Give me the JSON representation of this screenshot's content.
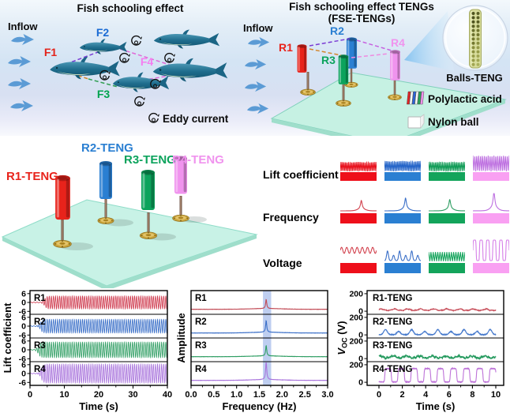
{
  "top_left": {
    "title": "Fish schooling effect",
    "inflow_label": "Inflow",
    "fish": [
      {
        "label": "F1",
        "color": "#e3231a"
      },
      {
        "label": "F2",
        "color": "#1a6bd4"
      },
      {
        "label": "F3",
        "color": "#00a34e"
      },
      {
        "label": "F4",
        "color": "#f57ef0"
      }
    ],
    "eddy_legend": "Eddy current"
  },
  "top_right": {
    "title_line1": "Fish schooling effect TENGs",
    "title_line2": "(FSE-TENGs)",
    "inflow_label": "Inflow",
    "rotors": [
      {
        "label": "R1",
        "color": "#e8231b"
      },
      {
        "label": "R2",
        "color": "#2a7fd2"
      },
      {
        "label": "R3",
        "color": "#0ca35c"
      },
      {
        "label": "R4",
        "color": "#f093ee"
      }
    ],
    "inset_label": "Balls-TENG",
    "legend": [
      {
        "label": "Polylactic acid"
      },
      {
        "label": "Nylon ball"
      }
    ]
  },
  "middle_left": {
    "tengs": [
      {
        "label": "R1-TENG",
        "color": "#e8231b"
      },
      {
        "label": "R2-TENG",
        "color": "#2a7fd2"
      },
      {
        "label": "R3-TENG",
        "color": "#0ca35c"
      },
      {
        "label": "R4-TENG",
        "color": "#f093ee"
      }
    ]
  },
  "middle_right": {
    "rows": [
      {
        "label": "Lift coefficient",
        "bar_colors": [
          "#ee0f1a",
          "#2a7fd2",
          "#13a45b",
          "#f9a0f2"
        ],
        "cells": [
          {
            "type": "zigzag",
            "color": "#e8101c",
            "amp": 0.6,
            "cycles": 22
          },
          {
            "type": "zigzag",
            "color": "#2464c8",
            "amp": 0.66,
            "cycles": 22
          },
          {
            "type": "zigzag",
            "color": "#0d9a54",
            "amp": 0.6,
            "cycles": 21
          },
          {
            "type": "zigzag",
            "color": "#bd6fe0",
            "amp": 1.0,
            "cycles": 19
          }
        ]
      },
      {
        "label": "Frequency",
        "bar_colors": [
          "#ee0f1a",
          "#2a7fd2",
          "#13a45b",
          "#f9a0f2"
        ],
        "cells": [
          {
            "type": "peak",
            "color": "#d2424e",
            "amp": 0.55,
            "cycles": 1
          },
          {
            "type": "peak",
            "color": "#3a6fc8",
            "amp": 0.68,
            "cycles": 1
          },
          {
            "type": "peak",
            "color": "#2f9e63",
            "amp": 0.6,
            "cycles": 1
          },
          {
            "type": "peak",
            "color": "#bd6fe0",
            "amp": 1.0,
            "cycles": 1
          }
        ]
      },
      {
        "label": "Voltage",
        "bar_colors": [
          "#ee0f1a",
          "#2a7fd2",
          "#13a45b",
          "#f9a0f2"
        ],
        "cells": [
          {
            "type": "sine",
            "color": "#d2424e",
            "amp": 0.28,
            "cycles": 7
          },
          {
            "type": "bumps",
            "color": "#3a6fc8",
            "amp": 0.45,
            "cycles": 6
          },
          {
            "type": "zigzag",
            "color": "#13a45b",
            "amp": 0.42,
            "cycles": 16
          },
          {
            "type": "pulses",
            "color": "#d67fe8",
            "amp": 1.0,
            "cycles": 5.5
          }
        ]
      }
    ]
  },
  "chart_data": [
    {
      "type": "line",
      "id": "lift-coefficient-vs-time",
      "xlabel": "Time (s)",
      "ylabel": "Lift coefficient",
      "x_range": [
        0,
        40
      ],
      "x_ticks": [
        0,
        10,
        20,
        30,
        40
      ],
      "x_tick_labels": [
        "0",
        "10",
        "20",
        "30",
        "40"
      ],
      "x_minor_step": 5,
      "panel_ylim": [
        -8,
        8
      ],
      "panel_yticks": [
        6,
        0,
        -6
      ],
      "panel_ytick_labels": [
        "6",
        "0",
        "-6"
      ],
      "oscillation_freq_hz": 1.65,
      "panels": [
        {
          "label": "R1",
          "color": "#cf3a4e",
          "signal": {
            "kind": "lift_osc",
            "amp": 4.3,
            "onset_s": 4.2,
            "freq": 1.65
          }
        },
        {
          "label": "R2",
          "color": "#3a6fc8",
          "signal": {
            "kind": "lift_osc",
            "amp": 4.6,
            "onset_s": 3.0,
            "freq": 1.65
          }
        },
        {
          "label": "R3",
          "color": "#2f9e63",
          "signal": {
            "kind": "lift_osc",
            "amp": 5.2,
            "onset_s": 2.4,
            "freq": 1.65
          }
        },
        {
          "label": "R4",
          "color": "#a873dc",
          "signal": {
            "kind": "lift_osc",
            "amp": 6.3,
            "onset_s": 3.2,
            "freq": 1.65
          }
        }
      ]
    },
    {
      "type": "line",
      "id": "amplitude-vs-frequency",
      "xlabel": "Frequency (Hz)",
      "ylabel": "Amplitude",
      "x_range": [
        0,
        3
      ],
      "x_ticks": [
        0,
        0.5,
        1,
        1.5,
        2,
        2.5,
        3
      ],
      "x_tick_labels": [
        "0.0",
        "0.5",
        "1.0",
        "1.5",
        "2.0",
        "2.5",
        "3.0"
      ],
      "x_minor_step": 0.25,
      "highlight_band": {
        "from_hz": 1.58,
        "to_hz": 1.76,
        "color": "#93aee6",
        "opacity": 0.6
      },
      "peak_freq_hz": 1.65,
      "panels": [
        {
          "label": "R1",
          "color": "#c24a55",
          "signal": {
            "kind": "fft_peak",
            "peak_h": 0.55
          }
        },
        {
          "label": "R2",
          "color": "#3a6fc8",
          "signal": {
            "kind": "fft_peak",
            "peak_h": 0.7
          }
        },
        {
          "label": "R3",
          "color": "#2f9e63",
          "signal": {
            "kind": "fft_peak",
            "peak_h": 0.62
          }
        },
        {
          "label": "R4",
          "color": "#a873dc",
          "signal": {
            "kind": "fft_peak",
            "peak_h": 1.08
          }
        }
      ]
    },
    {
      "type": "line",
      "id": "open-circuit-voltage-vs-time",
      "xlabel": "Time (s)",
      "ylabel_math": {
        "var": "V",
        "sub": "OC",
        "unit": " (V)"
      },
      "x_range": [
        0,
        10
      ],
      "x_ticks": [
        0,
        2,
        4,
        6,
        8,
        10
      ],
      "x_tick_labels": [
        "0",
        "2",
        "4",
        "6",
        "8",
        "10"
      ],
      "x_minor_step": 1,
      "panel_ylim": [
        -35,
        235
      ],
      "panel_yticks": [
        200,
        0
      ],
      "panel_ytick_labels": [
        "200",
        "0"
      ],
      "panels": [
        {
          "label": "R1-TENG",
          "color": "#c8505c",
          "signal": {
            "kind": "ripple",
            "amp_v": 28,
            "period_s": 1.12
          }
        },
        {
          "label": "R2-TENG",
          "color": "#4579cc",
          "signal": {
            "kind": "bumps",
            "amp_v": 58,
            "period_s": 1.12
          }
        },
        {
          "label": "R3-TENG",
          "color": "#259a5e",
          "signal": {
            "kind": "noisy",
            "amp_v": 38,
            "period_s": 1.12
          }
        },
        {
          "label": "R4-TENG",
          "color": "#bd72d8",
          "signal": {
            "kind": "pulses",
            "amp_v": 152,
            "period_s": 1.12
          }
        }
      ]
    }
  ]
}
